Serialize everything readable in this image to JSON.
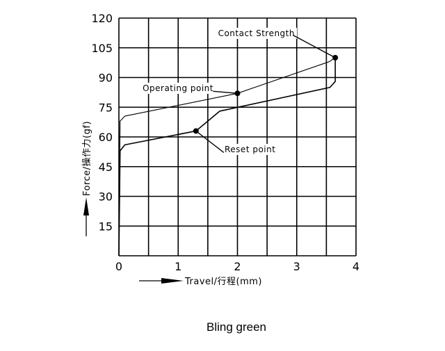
{
  "chart_data": {
    "type": "line",
    "title": "",
    "xlabel": "Travel/行程(mm)",
    "ylabel": "Force/操作力(gf)",
    "xlim": [
      0,
      4
    ],
    "ylim": [
      0,
      120
    ],
    "x_ticks": [
      "0",
      "1",
      "2",
      "3",
      "4"
    ],
    "y_ticks": [
      "15",
      "30",
      "45",
      "60",
      "75",
      "90",
      "105",
      "120"
    ],
    "grid": true,
    "series": [
      {
        "points": [
          [
            0,
            0
          ],
          [
            0.02,
            68
          ],
          [
            0.1,
            70.5
          ],
          [
            2,
            82
          ],
          [
            3.55,
            98
          ],
          [
            3.65,
            100
          ]
        ]
      },
      {
        "points": [
          [
            3.65,
            100
          ],
          [
            3.65,
            88
          ],
          [
            3.56,
            85
          ],
          [
            1.7,
            73
          ],
          [
            1.3,
            63
          ],
          [
            0.1,
            56
          ],
          [
            0.02,
            53
          ],
          [
            0,
            0
          ]
        ]
      }
    ],
    "annotations": [
      {
        "text": "Contact Strength",
        "x": 3.65,
        "y": 100
      },
      {
        "text": "Operating point",
        "x": 2,
        "y": 82
      },
      {
        "text": "Reset point",
        "x": 1.3,
        "y": 63
      }
    ]
  },
  "caption": "Bling green"
}
